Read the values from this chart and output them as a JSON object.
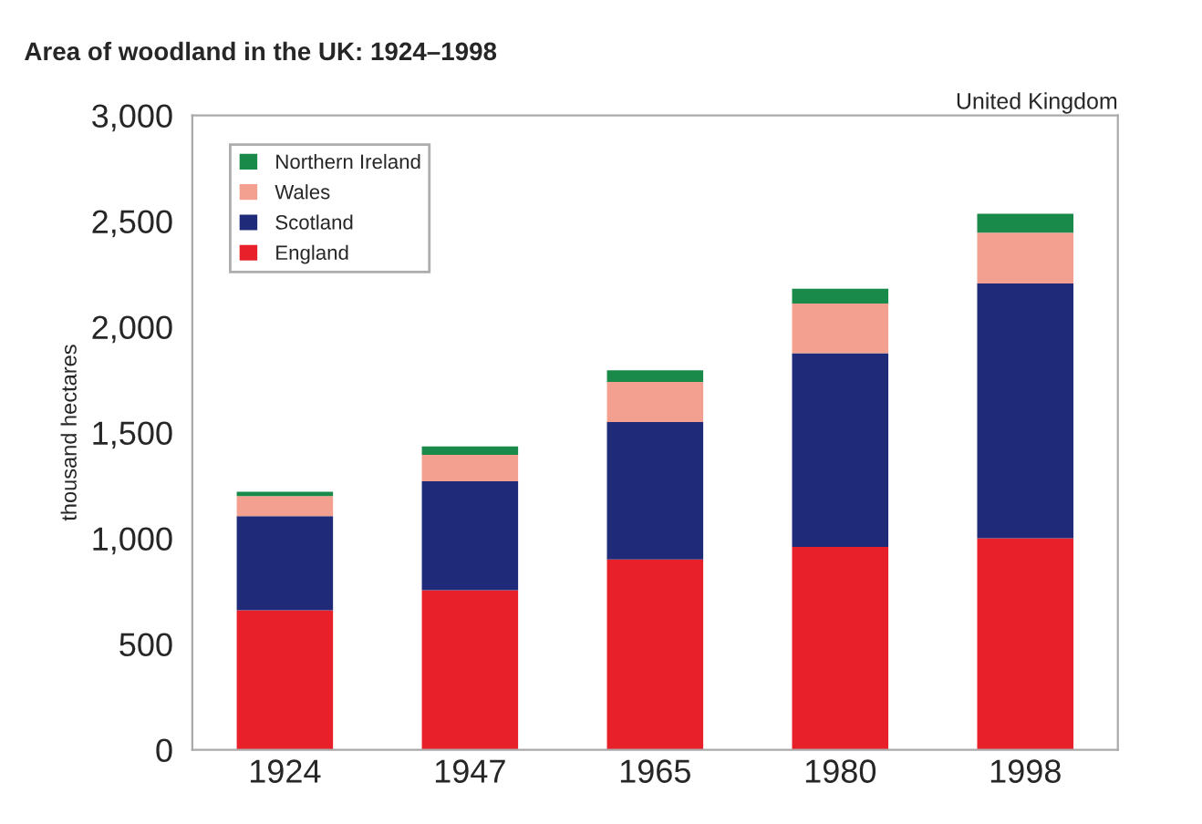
{
  "chart_data": {
    "type": "bar",
    "stacked": true,
    "title": "Area of woodland in the UK: 1924–1998",
    "ylabel": "thousand hectares",
    "annotations": [
      "United Kingdom"
    ],
    "categories": [
      "1924",
      "1947",
      "1965",
      "1980",
      "1998"
    ],
    "series": [
      {
        "name": "England",
        "color": "#e8202a",
        "values": [
          660,
          755,
          900,
          960,
          1000
        ]
      },
      {
        "name": "Scotland",
        "color": "#1f2a78",
        "values": [
          445,
          515,
          650,
          915,
          1205
        ]
      },
      {
        "name": "Wales",
        "color": "#f4a090",
        "values": [
          95,
          125,
          190,
          235,
          240
        ]
      },
      {
        "name": "Northern Ireland",
        "color": "#1a8a4a",
        "values": [
          20,
          40,
          55,
          70,
          90
        ]
      }
    ],
    "ylim": [
      0,
      3000
    ],
    "yticks": [
      0,
      {
        "value": 500,
        "label": "500"
      },
      {
        "value": 1000,
        "label": "1,000"
      },
      {
        "value": 1500,
        "label": "1,500"
      },
      {
        "value": 2000,
        "label": "2,000"
      },
      {
        "value": 2500,
        "label": "2,500"
      },
      {
        "value": 3000,
        "label": "3,000"
      }
    ],
    "grid": false,
    "legend": "top left"
  }
}
